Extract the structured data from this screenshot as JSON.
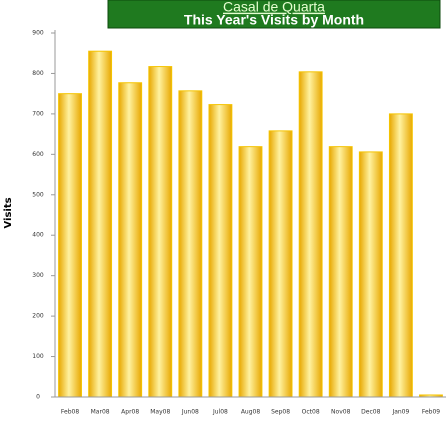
{
  "chart_data": {
    "type": "bar",
    "site": "Casal de Quarta",
    "title": "This Year's Visits by Month",
    "y_label": "Visits",
    "categories": [
      "Feb08",
      "Mar08",
      "Apr08",
      "May08",
      "Jun08",
      "Jul08",
      "Aug08",
      "Sep08",
      "Oct08",
      "Nov08",
      "Dec08",
      "Jan09",
      "Feb09"
    ],
    "values": [
      750,
      855,
      777,
      817,
      757,
      723,
      619,
      658,
      804,
      619,
      606,
      700,
      5
    ],
    "color": "#f5c400",
    "ylim": [
      0,
      900
    ],
    "yticks": [
      0,
      100,
      200,
      300,
      400,
      500,
      600,
      700,
      800,
      900
    ]
  }
}
